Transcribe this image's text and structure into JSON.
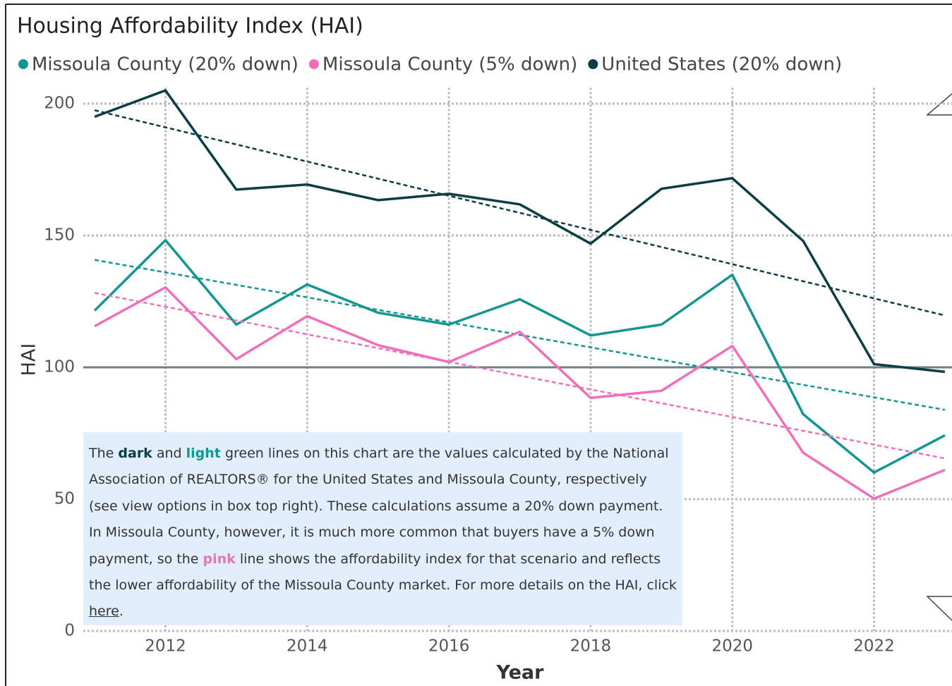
{
  "chart_data": {
    "type": "line",
    "title": "Housing Affordability Index (HAI)",
    "x_label": "Year",
    "y_label": "HAI",
    "x": [
      2011,
      2012,
      2013,
      2014,
      2015,
      2016,
      2017,
      2018,
      2019,
      2020,
      2021,
      2022,
      2023
    ],
    "series": [
      {
        "name": "Missoula County (20% down)",
        "color": "#13968f",
        "values": [
          121.5,
          148.2,
          116.2,
          131.4,
          120.7,
          116.2,
          125.8,
          112.1,
          116.2,
          135.1,
          82.2,
          60.1,
          74.2
        ]
      },
      {
        "name": "Missoula County (5% down)",
        "color": "#f06fb9",
        "values": [
          115.6,
          130.3,
          103.1,
          119.4,
          108.4,
          102.0,
          113.5,
          88.4,
          91.1,
          108.1,
          67.6,
          50.2,
          61.1
        ]
      },
      {
        "name": "United States (20% down)",
        "color": "#0b3d45",
        "values": [
          195.0,
          205.0,
          167.4,
          169.3,
          163.4,
          165.8,
          161.8,
          146.9,
          167.7,
          171.7,
          147.9,
          101.2,
          98.3
        ]
      }
    ],
    "trendlines": true,
    "reference_line": 100,
    "xlim": [
      2010.84,
      2023.1
    ],
    "ylim": [
      0,
      206
    ],
    "xticks": [
      2012,
      2014,
      2016,
      2018,
      2020,
      2022
    ],
    "yticks": [
      0,
      50,
      100,
      150,
      200
    ],
    "grid": true,
    "legend": "top",
    "annotation": [
      {
        "text": "The "
      },
      {
        "text": "dark",
        "color": "#0b3d45",
        "bold": true
      },
      {
        "text": " and "
      },
      {
        "text": "light",
        "color": "#13968f",
        "bold": true
      },
      {
        "text": " green lines on this chart are the values calculated by the National Association of REALTORS® for the United States and Missoula County, respectively (see view options in box top right). These calculations assume a 20% down payment. In Missoula County, however, it is much more common that buyers have a 5% down payment, so the "
      },
      {
        "text": "pink",
        "color": "#f06fb9",
        "bold": true
      },
      {
        "text": " line shows the affordability index for that scenario and reflects the lower affordability of the Missoula County market. For more details on the HAI, click "
      },
      {
        "text": "here",
        "link": true
      },
      {
        "text": "."
      }
    ]
  }
}
